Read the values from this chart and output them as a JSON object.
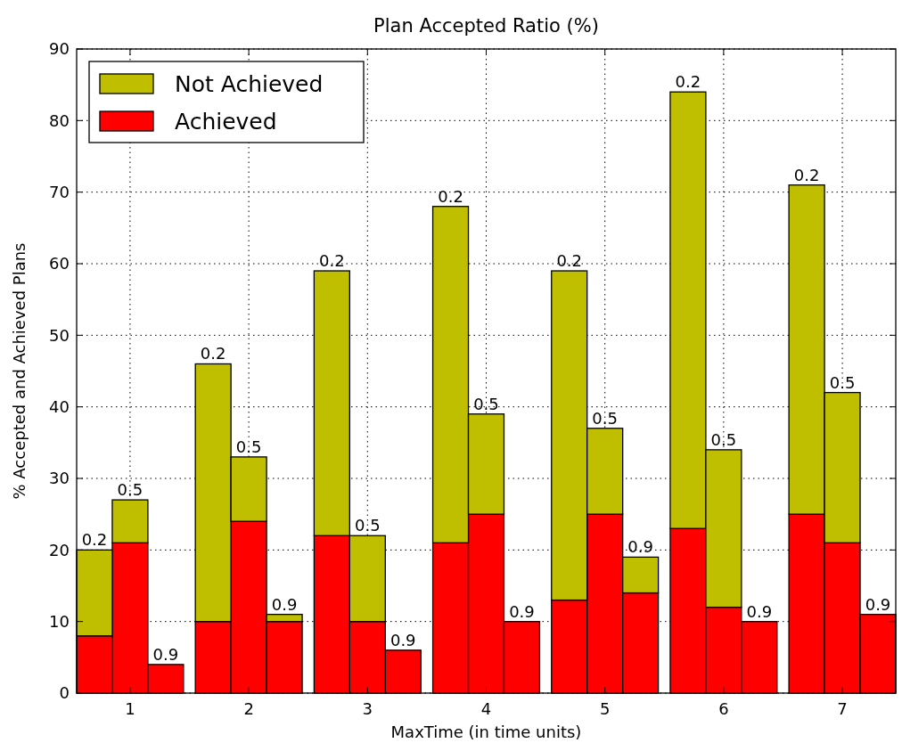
{
  "chart_data": {
    "type": "bar",
    "title": "Plan Accepted Ratio (%)",
    "xlabel": "MaxTime (in time units)",
    "ylabel": "% Accepted and Achieved Plans",
    "stacked": true,
    "x": [
      0.7,
      1,
      1.3,
      1.7,
      2,
      2.3,
      2.7,
      3,
      3.3,
      3.7,
      4,
      4.3,
      4.7,
      5,
      5.3,
      5.7,
      6,
      6.3,
      6.7,
      7,
      7.3
    ],
    "series": [
      {
        "name": "Achieved",
        "color": "#ff0000",
        "values": [
          8,
          21,
          4,
          10,
          24,
          10,
          22,
          10,
          6,
          21,
          25,
          10,
          13,
          25,
          14,
          23,
          12,
          10,
          25,
          21,
          11
        ]
      },
      {
        "name": "Not Achieved",
        "color": "#bfbf00",
        "values": [
          12,
          6,
          0,
          36,
          9,
          1,
          37,
          12,
          0,
          47,
          14,
          0,
          46,
          12,
          5,
          61,
          22,
          0,
          46,
          21,
          0
        ]
      }
    ],
    "xlim": [
      0.55,
      7.45
    ],
    "xticks": [
      1,
      2,
      3,
      4,
      5,
      6,
      7
    ],
    "ylim": [
      0,
      90
    ],
    "yticks": [
      0,
      10,
      20,
      30,
      40,
      50,
      60,
      70,
      80,
      90
    ],
    "grid": true,
    "legend": "top left",
    "annotations": [
      {
        "text": "0.2",
        "x": 0.7,
        "y": 20
      },
      {
        "text": "0.5",
        "x": 1,
        "y": 27
      },
      {
        "text": "0.9",
        "x": 1.3,
        "y": 4
      },
      {
        "text": "0.2",
        "x": 1.7,
        "y": 46
      },
      {
        "text": "0.5",
        "x": 2,
        "y": 33
      },
      {
        "text": "0.9",
        "x": 2.3,
        "y": 11
      },
      {
        "text": "0.2",
        "x": 2.7,
        "y": 59
      },
      {
        "text": "0.5",
        "x": 3,
        "y": 22
      },
      {
        "text": "0.9",
        "x": 3.3,
        "y": 6
      },
      {
        "text": "0.2",
        "x": 3.7,
        "y": 68
      },
      {
        "text": "0.5",
        "x": 4,
        "y": 39
      },
      {
        "text": "0.9",
        "x": 4.3,
        "y": 10
      },
      {
        "text": "0.2",
        "x": 4.7,
        "y": 59
      },
      {
        "text": "0.5",
        "x": 5,
        "y": 37
      },
      {
        "text": "0.9",
        "x": 5.3,
        "y": 19
      },
      {
        "text": "0.2",
        "x": 5.7,
        "y": 84
      },
      {
        "text": "0.5",
        "x": 6,
        "y": 34
      },
      {
        "text": "0.9",
        "x": 6.3,
        "y": 10
      },
      {
        "text": "0.2",
        "x": 6.7,
        "y": 71
      },
      {
        "text": "0.5",
        "x": 7,
        "y": 42
      },
      {
        "text": "0.9",
        "x": 7.3,
        "y": 11
      }
    ]
  }
}
